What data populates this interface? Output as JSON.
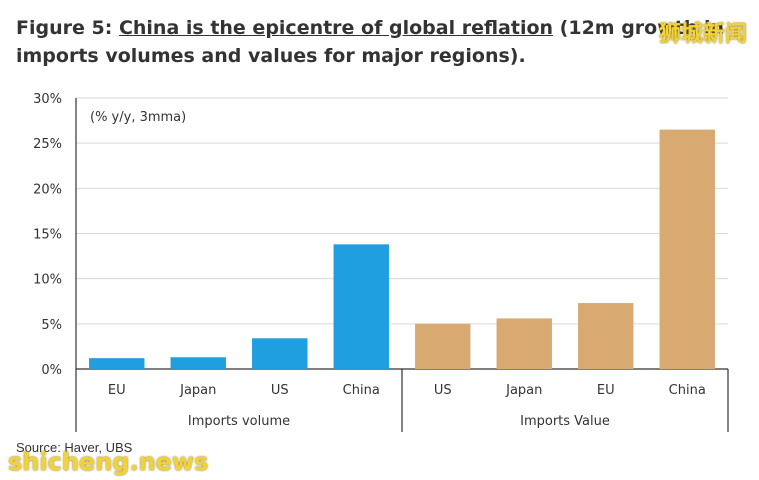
{
  "header": {
    "title_prefix": "Figure 5: ",
    "title_underlined": "China is the epicentre of global reflation",
    "title_suffix": " (12m growth in imports volumes and values for major regions)."
  },
  "watermark": {
    "top_text": "狮城新闻",
    "bottom_text": "shicheng.news"
  },
  "footer": {
    "source": "Source:  Haver, UBS"
  },
  "chart_data": {
    "type": "bar",
    "unit_note": "(% y/y, 3mma)",
    "ylim": [
      0,
      30
    ],
    "yticks": [
      "0%",
      "5%",
      "10%",
      "15%",
      "20%",
      "25%",
      "30%"
    ],
    "grid": true,
    "groups": [
      {
        "label": "Imports volume",
        "color": "#1f9ee0",
        "categories": [
          "EU",
          "Japan",
          "US",
          "China"
        ],
        "values": [
          1.2,
          1.3,
          3.4,
          13.8
        ]
      },
      {
        "label": "Imports Value",
        "color": "#d8aa72",
        "categories": [
          "US",
          "Japan",
          "EU",
          "China"
        ],
        "values": [
          5.0,
          5.6,
          7.3,
          26.5
        ]
      }
    ]
  }
}
